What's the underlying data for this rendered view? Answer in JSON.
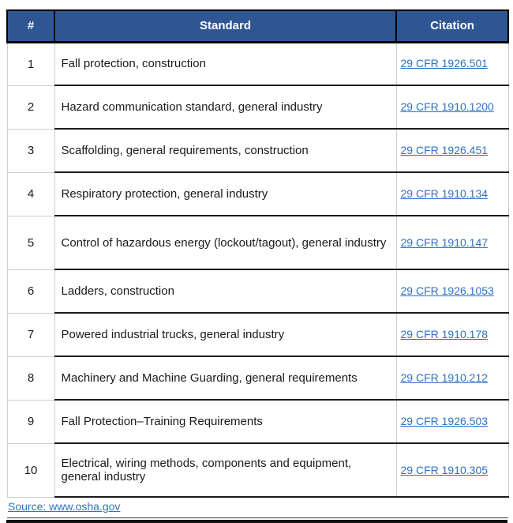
{
  "table": {
    "columns": [
      {
        "key": "num",
        "label": "#"
      },
      {
        "key": "standard",
        "label": "Standard"
      },
      {
        "key": "citation",
        "label": "Citation"
      }
    ],
    "rows": [
      {
        "num": "1",
        "standard": "Fall protection, construction",
        "citation": "29 CFR 1926.501"
      },
      {
        "num": "2",
        "standard": "Hazard communication standard, general industry",
        "citation": "29 CFR 1910.1200"
      },
      {
        "num": "3",
        "standard": "Scaffolding, general requirements, construction",
        "citation": "29 CFR 1926.451"
      },
      {
        "num": "4",
        "standard": "Respiratory protection, general industry",
        "citation": "29 CFR 1910.134"
      },
      {
        "num": "5",
        "standard": "Control of hazardous energy (lockout/tagout), general industry",
        "citation": "29 CFR 1910.147"
      },
      {
        "num": "6",
        "standard": "Ladders, construction",
        "citation": "29 CFR 1926.1053"
      },
      {
        "num": "7",
        "standard": "Powered industrial trucks, general industry",
        "citation": "29 CFR 1910.178"
      },
      {
        "num": "8",
        "standard": "Machinery and Machine Guarding, general requirements",
        "citation": "29 CFR 1910.212"
      },
      {
        "num": "9",
        "standard": "Fall Protection–Training Requirements",
        "citation": "29 CFR 1926.503"
      },
      {
        "num": "10",
        "standard": "Electrical, wiring methods, components and equipment, general industry",
        "citation": "29 CFR 1910.305"
      }
    ],
    "source_label": "Source: www.osha.gov"
  },
  "colors": {
    "header_bg": "#2e5693",
    "header_text": "#ffffff",
    "link": "#2e71c5",
    "row_border_dark": "#1c1c1c",
    "row_border_light": "#cfcfcf"
  }
}
